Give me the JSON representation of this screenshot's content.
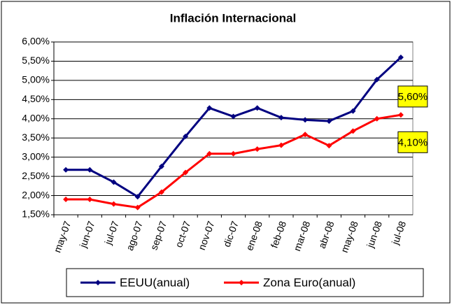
{
  "chart_data": {
    "type": "line",
    "title": "Inflación Internacional",
    "categories": [
      "may-07",
      "jun-07",
      "jul-07",
      "ago-07",
      "sep-07",
      "oct-07",
      "nov-07",
      "dic-07",
      "ene-08",
      "feb-08",
      "mar-08",
      "abr-08",
      "may-08",
      "jun-08",
      "jul-08"
    ],
    "series": [
      {
        "name": "EEUU(anual)",
        "color": "#000080",
        "values": [
          2.67,
          2.67,
          2.35,
          1.97,
          2.76,
          3.54,
          4.28,
          4.06,
          4.28,
          4.03,
          3.97,
          3.94,
          4.2,
          5.02,
          5.6
        ],
        "value_labels": [
          null,
          null,
          null,
          null,
          null,
          null,
          null,
          null,
          null,
          null,
          null,
          null,
          null,
          null,
          "5,60%"
        ]
      },
      {
        "name": "Zona Euro(anual)",
        "color": "#ff0000",
        "values": [
          1.9,
          1.9,
          1.78,
          1.69,
          2.09,
          2.6,
          3.09,
          3.09,
          3.21,
          3.31,
          3.59,
          3.3,
          3.68,
          4.0,
          4.1
        ],
        "value_labels": [
          null,
          null,
          null,
          null,
          null,
          null,
          null,
          null,
          null,
          null,
          null,
          null,
          null,
          null,
          "4,10%"
        ]
      }
    ],
    "ylim": [
      1.5,
      6.0
    ],
    "yticks": [
      {
        "value": 1.5,
        "label": "1,50%"
      },
      {
        "value": 2.0,
        "label": "2,00%"
      },
      {
        "value": 2.5,
        "label": "2,50%"
      },
      {
        "value": 3.0,
        "label": "3,00%"
      },
      {
        "value": 3.5,
        "label": "3,50%"
      },
      {
        "value": 4.0,
        "label": "4,00%"
      },
      {
        "value": 4.5,
        "label": "4,50%"
      },
      {
        "value": 5.0,
        "label": "5,00%"
      },
      {
        "value": 5.5,
        "label": "5,50%"
      },
      {
        "value": 6.0,
        "label": "6,00%"
      }
    ],
    "grid": true,
    "legend": "bottom"
  }
}
